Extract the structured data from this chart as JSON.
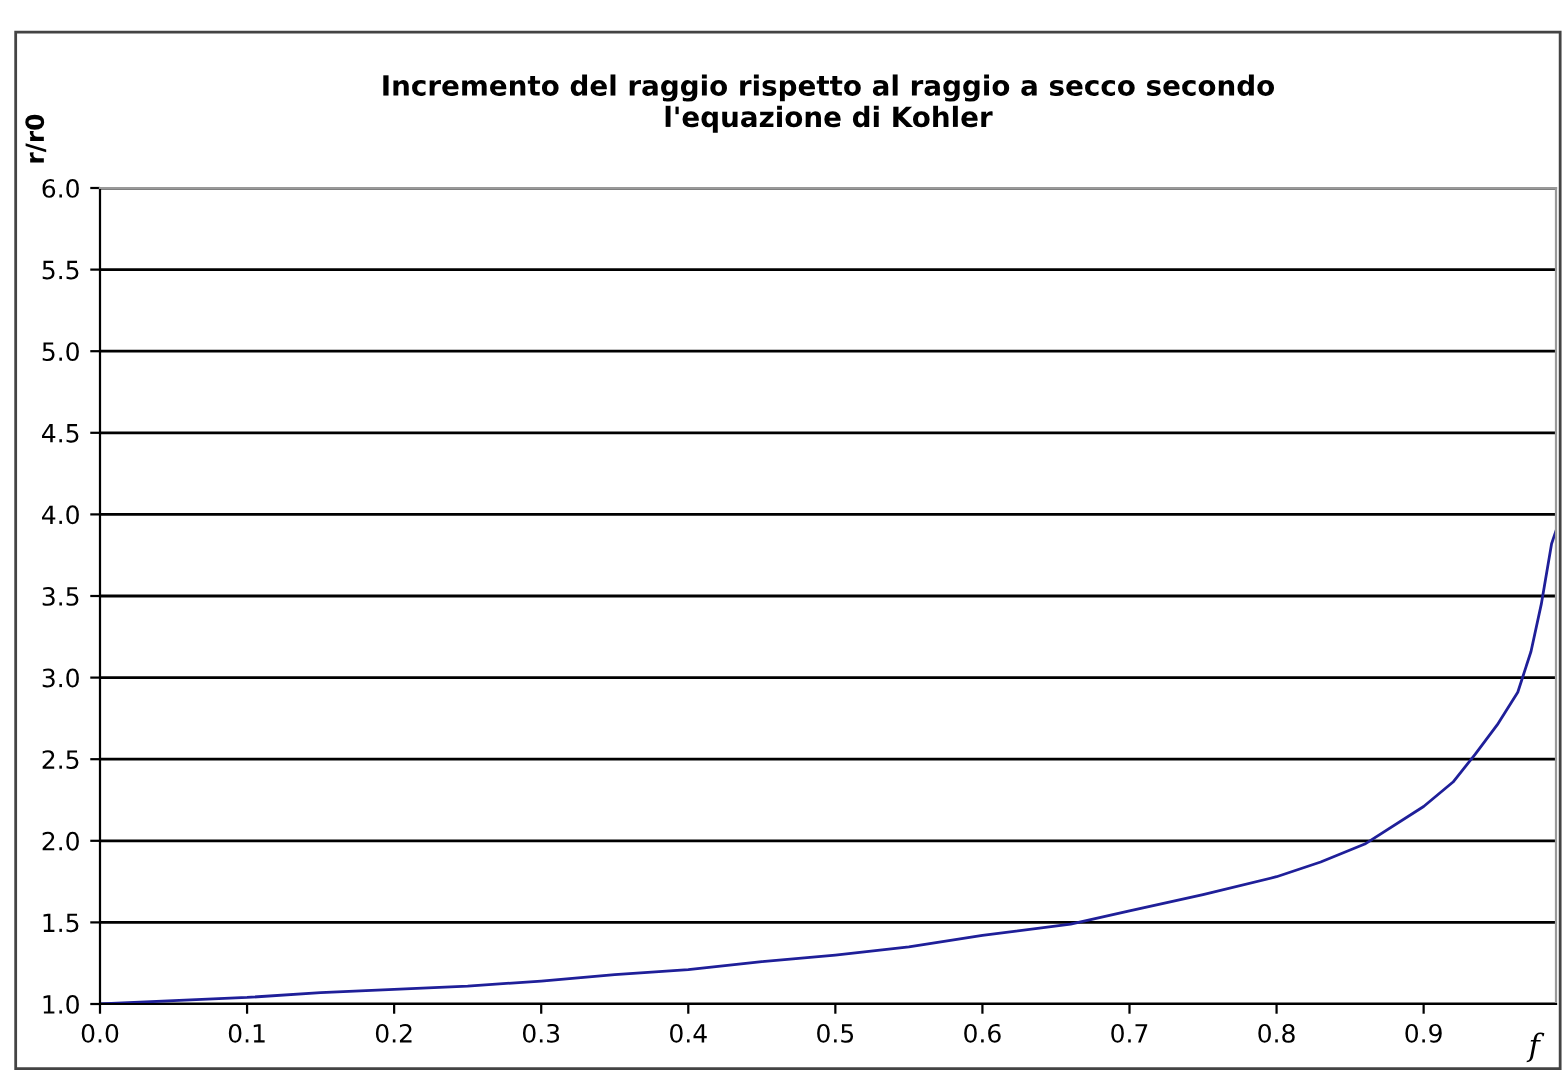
{
  "chart_data": {
    "type": "line",
    "title": "Incremento del raggio rispetto al raggio a secco secondo\nl'equazione di Kohler",
    "xlabel": "f",
    "ylabel": "r/r0",
    "series": [
      {
        "color": "#1f1f99",
        "x": [
          0.0,
          0.05,
          0.1,
          0.15,
          0.2,
          0.25,
          0.3,
          0.35,
          0.4,
          0.45,
          0.5,
          0.55,
          0.6,
          0.66,
          0.7,
          0.75,
          0.8,
          0.83,
          0.86,
          0.9,
          0.92,
          0.935,
          0.95,
          0.964,
          0.973,
          0.98,
          0.987,
          0.99
        ],
        "values": [
          1.0,
          1.02,
          1.04,
          1.07,
          1.09,
          1.11,
          1.14,
          1.18,
          1.21,
          1.26,
          1.3,
          1.35,
          1.42,
          1.49,
          1.57,
          1.67,
          1.78,
          1.87,
          1.98,
          2.21,
          2.36,
          2.53,
          2.71,
          2.91,
          3.16,
          3.45,
          3.82,
          3.9
        ]
      }
    ],
    "xlim": [
      0,
      0.99
    ],
    "xticks": [
      {
        "value": 0,
        "label": "0.0"
      },
      0.1,
      0.2,
      0.3,
      0.4,
      0.5,
      0.6,
      0.7,
      0.8,
      0.9
    ],
    "ylim": [
      1.0,
      6.0
    ],
    "yticks": [
      {
        "value": 1,
        "label": "1.0"
      },
      1.5,
      {
        "value": 2,
        "label": "2.0"
      },
      2.5,
      {
        "value": 3,
        "label": "3.0"
      },
      3.5,
      {
        "value": 4,
        "label": "4.0"
      },
      4.5,
      {
        "value": 5,
        "label": "5.0"
      },
      5.5,
      {
        "value": 6,
        "label": "6.0"
      }
    ],
    "grid": "y",
    "legend": false
  }
}
